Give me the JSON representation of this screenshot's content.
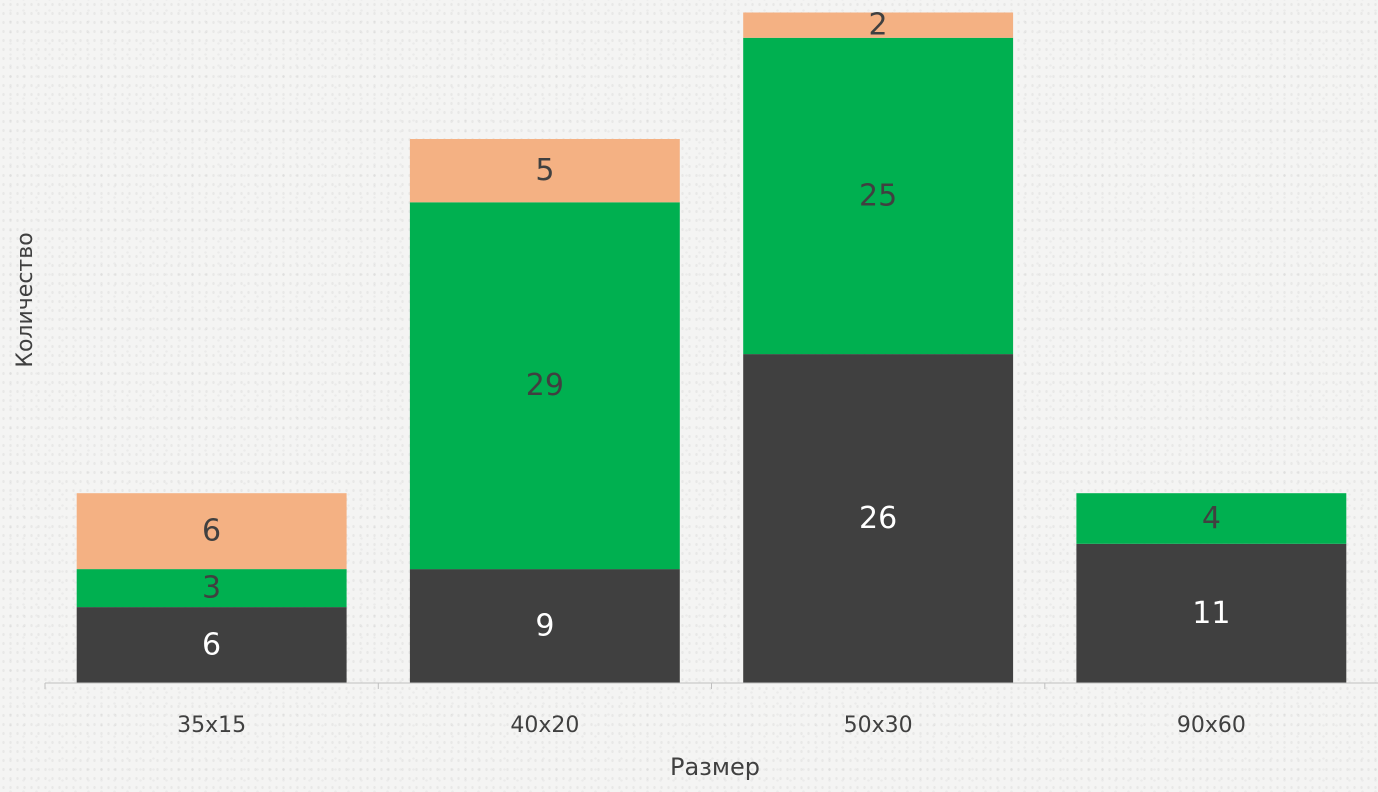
{
  "chart_data": {
    "type": "bar",
    "stacked": true,
    "title": "",
    "xlabel": "Размер",
    "ylabel": "Количество",
    "categories": [
      "35x15",
      "40x20",
      "50x30",
      "90x60"
    ],
    "series": [
      {
        "values": [
          6,
          9,
          26,
          11
        ],
        "color": "#404040"
      },
      {
        "values": [
          3,
          29,
          25,
          4
        ],
        "color": "#00b050"
      },
      {
        "values": [
          6,
          5,
          2,
          0
        ],
        "color": "#f4b183"
      }
    ],
    "ylim": [
      0,
      53
    ],
    "grid": false,
    "legend": "none"
  }
}
